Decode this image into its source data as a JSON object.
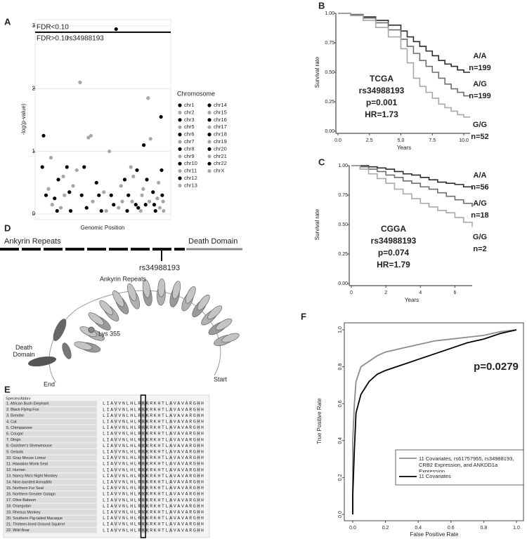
{
  "chart_data": [
    {
      "panel_label": "A",
      "type": "scatter",
      "xlabel": "Genomic Position",
      "ylabel": "-log(p-value)",
      "xlim": [
        -2,
        102
      ],
      "ylim": [
        0,
        3
      ],
      "yticks": [
        0,
        1,
        2,
        3
      ],
      "grid": true,
      "threshold": {
        "value": 2.9,
        "above_label": "FDR<0.10",
        "below_label": "FDR>0.10"
      },
      "annotation": "rs34988193",
      "legend_title": "Chromosome",
      "series": [
        {
          "name": "chr1",
          "color": "#000000",
          "x": [
            1,
            2,
            4
          ],
          "values": [
            0.75,
            1.25,
            0.3
          ]
        },
        {
          "name": "chr2",
          "color": "#a6a6a6",
          "x": [
            6,
            8,
            9
          ],
          "values": [
            0.4,
            0.9,
            0.15
          ]
        },
        {
          "name": "chr3",
          "color": "#000000",
          "x": [
            11,
            13,
            14
          ],
          "values": [
            0.25,
            0.05,
            0.55
          ]
        },
        {
          "name": "chr5",
          "color": "#a6a6a6",
          "x": [
            16,
            18,
            19
          ],
          "values": [
            0.1,
            0.6,
            0.3
          ]
        },
        {
          "name": "chr6",
          "color": "#000000",
          "x": [
            21,
            23,
            24
          ],
          "values": [
            0.75,
            0.35,
            0.05
          ]
        },
        {
          "name": "chr7",
          "color": "#a6a6a6",
          "x": [
            26,
            29,
            31.7
          ],
          "values": [
            0.45,
            0.7,
            2.1
          ]
        },
        {
          "name": "chr8",
          "color": "#000000",
          "x": [
            33,
            35,
            37
          ],
          "values": [
            0.3,
            0.75,
            0.1
          ]
        },
        {
          "name": "chr9",
          "color": "#a6a6a6",
          "x": [
            38.5,
            40.5,
            42
          ],
          "values": [
            1.22,
            1.25,
            0.2
          ]
        },
        {
          "name": "chr10",
          "color": "#000000",
          "x": [
            45,
            47,
            49
          ],
          "values": [
            0.5,
            0.3,
            0.05
          ]
        },
        {
          "name": "chr11",
          "color": "#a6a6a6",
          "x": [
            51,
            53,
            55.5
          ],
          "values": [
            0.35,
            0.05,
            1.0
          ]
        },
        {
          "name": "chr12",
          "color": "#000000",
          "x": [
            57,
            59,
            61
          ],
          "values": [
            0.3,
            0.15,
            2.95
          ]
        },
        {
          "name": "chr13",
          "color": "#a6a6a6",
          "x": [
            63,
            65,
            66
          ],
          "values": [
            0.1,
            0.45,
            0.2
          ]
        },
        {
          "name": "chr14",
          "color": "#000000",
          "x": [
            68,
            70,
            71
          ],
          "values": [
            0.55,
            0.05,
            0.3
          ]
        },
        {
          "name": "chr15",
          "color": "#a6a6a6",
          "x": [
            73,
            74,
            75
          ],
          "values": [
            0.75,
            0.2,
            0.6
          ]
        },
        {
          "name": "chr16",
          "color": "#000000",
          "x": [
            77,
            78,
            79
          ],
          "values": [
            0.15,
            0.7,
            0.1
          ]
        },
        {
          "name": "chr17",
          "color": "#a6a6a6",
          "x": [
            81,
            82,
            83
          ],
          "values": [
            0.05,
            0.3,
            0.4
          ]
        },
        {
          "name": "chr18",
          "color": "#000000",
          "x": [
            83.5,
            85,
            86
          ],
          "values": [
            1.1,
            0.15,
            0.55
          ]
        },
        {
          "name": "chr19",
          "color": "#a6a6a6",
          "x": [
            87,
            88,
            89
          ],
          "values": [
            1.85,
            0.2,
            1.2
          ]
        },
        {
          "name": "chr20",
          "color": "#000000",
          "x": [
            91,
            92,
            93
          ],
          "values": [
            0.35,
            0.15,
            0.05
          ]
        },
        {
          "name": "chr21",
          "color": "#a6a6a6",
          "x": [
            94.5,
            95.5,
            96.5
          ],
          "values": [
            0.25,
            0.5,
            0.1
          ]
        },
        {
          "name": "chr22",
          "color": "#000000",
          "x": [
            97.5,
            98,
            98.5
          ],
          "values": [
            1.55,
            0.7,
            0.3
          ]
        },
        {
          "name": "chrX",
          "color": "#a6a6a6",
          "x": [
            99.2,
            99.6
          ],
          "values": [
            0.2,
            0.05
          ]
        }
      ]
    },
    {
      "panel_label": "B",
      "type": "line",
      "step": true,
      "xlabel": "Years",
      "ylabel": "Survival rate",
      "xlim": [
        0,
        10.5
      ],
      "ylim": [
        0,
        1
      ],
      "xticks": [
        {
          "value": 0,
          "label": "0.0"
        },
        2.5,
        {
          "value": 5,
          "label": "5.0"
        },
        7.5,
        {
          "value": 10,
          "label": "10.0"
        }
      ],
      "yticks": [
        {
          "value": 0,
          "label": "0.00"
        },
        0.25,
        {
          "value": 0.5,
          "label": "0.50"
        },
        0.75,
        {
          "value": 1,
          "label": "1.00"
        }
      ],
      "annotations": [
        "TCGA",
        "rs34988193",
        "p=0.001",
        "HR=1.73"
      ],
      "series": [
        {
          "name": "A/A",
          "n_label": "n=199",
          "color": "#2b2b2b",
          "x": [
            0,
            1,
            2,
            3,
            4,
            5,
            5.5,
            6,
            6.5,
            7,
            7.5,
            8,
            8.5,
            9,
            9.5,
            10,
            10.5
          ],
          "values": [
            1,
            0.99,
            0.97,
            0.94,
            0.9,
            0.85,
            0.8,
            0.76,
            0.72,
            0.68,
            0.64,
            0.6,
            0.57,
            0.55,
            0.52,
            0.5,
            0.5
          ]
        },
        {
          "name": "A/G",
          "n_label": "n=199",
          "color": "#6e6e6e",
          "x": [
            0,
            1,
            2,
            3,
            4,
            5,
            5.5,
            6,
            6.5,
            7,
            7.5,
            8,
            8.5,
            9,
            9.5,
            10,
            10.5
          ],
          "values": [
            1,
            0.99,
            0.96,
            0.92,
            0.86,
            0.78,
            0.72,
            0.66,
            0.6,
            0.55,
            0.5,
            0.45,
            0.4,
            0.36,
            0.33,
            0.3,
            0.3
          ]
        },
        {
          "name": "G/G",
          "n_label": "n=52",
          "color": "#a8a8a8",
          "x": [
            0,
            1,
            2,
            3,
            4,
            5,
            5.5,
            6,
            6.5,
            7,
            7.5,
            8,
            8.5,
            9,
            9.5,
            10,
            10.5
          ],
          "values": [
            1,
            0.98,
            0.94,
            0.88,
            0.8,
            0.7,
            0.58,
            0.45,
            0.38,
            0.33,
            0.28,
            0.23,
            0.2,
            0.17,
            0.14,
            0.12,
            0.12
          ]
        }
      ]
    },
    {
      "panel_label": "C",
      "type": "line",
      "step": true,
      "xlabel": "Years",
      "ylabel": "Survival rate",
      "xlim": [
        0,
        7
      ],
      "ylim": [
        0,
        1
      ],
      "xticks": [
        0,
        2,
        4,
        6
      ],
      "yticks": [
        {
          "value": 0,
          "label": "0.00"
        },
        0.25,
        {
          "value": 0.5,
          "label": "0.50"
        },
        0.75,
        {
          "value": 1,
          "label": "1.00"
        }
      ],
      "annotations": [
        "CGGA",
        "rs34988193",
        "p=0.074",
        "HR=1.79"
      ],
      "series": [
        {
          "name": "A/A",
          "n_label": "n=56",
          "color": "#2b2b2b",
          "x": [
            0,
            0.5,
            1,
            1.5,
            2,
            2.5,
            3,
            3.5,
            4,
            4.5,
            5,
            5.5,
            6,
            6.5,
            7
          ],
          "values": [
            1,
            1,
            0.99,
            0.98,
            0.97,
            0.95,
            0.93,
            0.92,
            0.9,
            0.88,
            0.86,
            0.85,
            0.84,
            0.82,
            0.8
          ]
        },
        {
          "name": "A/G",
          "n_label": "n=18",
          "color": "#6e6e6e",
          "x": [
            0,
            0.5,
            1,
            1.5,
            2,
            2.5,
            3,
            3.5,
            4,
            4.5,
            5,
            5.5,
            6,
            6.5,
            7
          ],
          "values": [
            1,
            0.99,
            0.97,
            0.95,
            0.92,
            0.9,
            0.87,
            0.85,
            0.82,
            0.8,
            0.77,
            0.74,
            0.71,
            0.68,
            0.65
          ]
        },
        {
          "name": "G/G",
          "n_label": "n=2",
          "color": "#a8a8a8",
          "x": [
            0,
            0.5,
            1,
            1.5,
            2,
            2.5,
            3,
            3.5,
            4,
            4.5,
            5,
            5.5,
            6,
            6.5,
            7
          ],
          "values": [
            1,
            0.97,
            0.93,
            0.89,
            0.85,
            0.8,
            0.76,
            0.72,
            0.68,
            0.65,
            0.62,
            0.6,
            0.56,
            0.52,
            0.48
          ]
        }
      ]
    },
    {
      "panel_label": "F",
      "type": "line",
      "step": false,
      "xlabel": "False Positive Rate",
      "ylabel": "True Positive Rate",
      "xlim": [
        0,
        1
      ],
      "ylim": [
        0,
        1
      ],
      "xticks": [
        {
          "value": 0,
          "label": "0.0"
        },
        0.2,
        0.4,
        0.6,
        0.8,
        {
          "value": 1,
          "label": "1.0"
        }
      ],
      "yticks": [
        {
          "value": 0,
          "label": "0.0"
        },
        0.2,
        0.4,
        0.6,
        0.8,
        {
          "value": 1,
          "label": "1.0"
        }
      ],
      "annotations": [
        "p=0.0279"
      ],
      "series": [
        {
          "name": "11 Covariates, rs61757955, rs34988193, CRB2 Expression, and ANKDD1a Expression",
          "color": "#8c8c8c",
          "x": [
            0,
            0,
            0.01,
            0.02,
            0.05,
            0.1,
            0.15,
            0.2,
            0.3,
            0.4,
            0.5,
            0.6,
            0.7,
            0.8,
            0.9,
            1.0
          ],
          "values": [
            0,
            0.4,
            0.6,
            0.72,
            0.8,
            0.83,
            0.86,
            0.88,
            0.9,
            0.92,
            0.94,
            0.95,
            0.96,
            0.97,
            0.99,
            1.0
          ]
        },
        {
          "name": "11 Covariates",
          "color": "#000000",
          "x": [
            0,
            0,
            0.01,
            0.02,
            0.05,
            0.1,
            0.15,
            0.2,
            0.3,
            0.4,
            0.5,
            0.6,
            0.7,
            0.8,
            0.9,
            1.0
          ],
          "values": [
            0,
            0.1,
            0.35,
            0.55,
            0.65,
            0.72,
            0.76,
            0.78,
            0.81,
            0.84,
            0.87,
            0.9,
            0.93,
            0.95,
            0.98,
            1.0
          ]
        }
      ]
    }
  ],
  "domain_diagram": {
    "panel_label": "D",
    "left_label": "Ankyrin Repeats",
    "right_label": "Death Domain",
    "snp_label": "rs34988193",
    "structure_labels": {
      "repeats": "Ankyrin Repeats",
      "lys": "Lys 355",
      "death_domain": "Death Domain",
      "end": "End",
      "start": "Start"
    }
  },
  "alignment": {
    "panel_label": "E",
    "header": "Species/Abbrv",
    "rows": [
      {
        "species": "1. African Bush Elephant",
        "sequence": "LIAVVNLHLRKKRKHTLAVAVARGHH"
      },
      {
        "species": "2. Black Flying Fox",
        "sequence": "LIAVVNLHLRKKRKHTLAVAVARGHH"
      },
      {
        "species": "3. Bonobo",
        "sequence": "LIAVVNLHLRKKRKHTLAVAVARGHH"
      },
      {
        "species": "4. Cat",
        "sequence": "LIAVVNLHLRKKRKHTLAVAVARGHH"
      },
      {
        "species": "5. Chimpanzee",
        "sequence": "LIAVVNLHLRKKRKHTLAVAVARGHH"
      },
      {
        "species": "6. Cougar",
        "sequence": "LIAVVNLHLRKKRKHTLAVAVARGHH"
      },
      {
        "species": "7. Dingo",
        "sequence": "LIAVVNLHLRKKRKHTLAVAVARGHH"
      },
      {
        "species": "8. Gairdner's Shrewmouse",
        "sequence": "LIAVVNLHLRKKRKHTLAVAVARGHH"
      },
      {
        "species": "9. Gelada",
        "sequence": "LIAVVNLHLRKKRKHTLAVAVARGHH"
      },
      {
        "species": "10. Gray Mouse Lemur",
        "sequence": "LIAVVNLHLRKKRKHTLAVAVARGHH"
      },
      {
        "species": "11. Hawaiian Monk Seal",
        "sequence": "LIAVVNLHLRKKRKHTLAVAVARGHH"
      },
      {
        "species": "12. Human",
        "sequence": "LIAVVNLHLRKKRKHTLAVAVARGHH"
      },
      {
        "species": "13. Nancy Ma's Night Monkey",
        "sequence": "LIAVVNLHLRKKRKHTLAVAVARGHH"
      },
      {
        "species": "14. Nine-banded Armadillo",
        "sequence": "LIAVVNLHLRKKRKHTLAVAVARGHH"
      },
      {
        "species": "15. Northern Fur Seal",
        "sequence": "LIAVVNLHLRKKRKHTLAVAVARGHH"
      },
      {
        "species": "16. Northern Greater Galago",
        "sequence": "LIAVVNLHLRKKRKHTLAVAVARGHH"
      },
      {
        "species": "17. Olive Baboon",
        "sequence": "LIAVVNLHLRKKRKHTLAVAVARGHH"
      },
      {
        "species": "18. Orangutan",
        "sequence": "LIAVVNLHLRKKRKHTLAVAVARGHH"
      },
      {
        "species": "19. Rhesus Monkey",
        "sequence": "LIAVVNLHLRKKRKHTLAVAVARGHH"
      },
      {
        "species": "20. Southern Pig-tailed Macaque",
        "sequence": "LIAVVNLHLRKKRKHTLAVAVARGHH"
      },
      {
        "species": "21. Thirteen-lined Ground Squirrel",
        "sequence": "LIAVVNLHLRKKRKHTLAVAVARGHH"
      },
      {
        "species": "22. Wild Boar",
        "sequence": "LIAVVNLHLRKKRKHTLAVAVARGHH"
      }
    ]
  }
}
